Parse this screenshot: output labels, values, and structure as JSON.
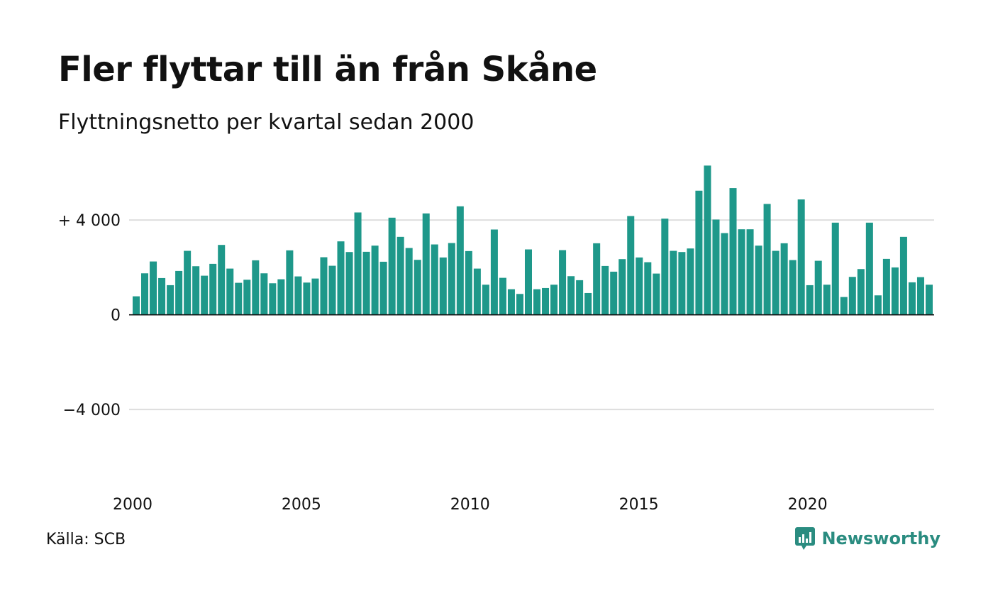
{
  "title": "Fler flyttar till än från Skåne",
  "subtitle": "Flyttningsnetto per kvartal sedan 2000",
  "source": "Källa: SCB",
  "brand": {
    "name": "Newsworthy",
    "icon": "newsworthy-logo-icon"
  },
  "colors": {
    "bar": "#1e988a",
    "grid": "#dedede",
    "zero_line": "#111111",
    "brand": "#2a8c80"
  },
  "chart_data": {
    "type": "bar",
    "x_start": "2000-Q1",
    "xlim_years": [
      2000,
      2023.75
    ],
    "ylim": [
      -7500,
      7000
    ],
    "grid": true,
    "y_ticks": [
      {
        "value": 4000,
        "label": "+ 4 000"
      },
      {
        "value": 0,
        "label": "0"
      },
      {
        "value": -4000,
        "label": "−4 000"
      }
    ],
    "x_ticks": [
      {
        "year": 2000,
        "label": "2000"
      },
      {
        "year": 2005,
        "label": "2005"
      },
      {
        "year": 2010,
        "label": "2010"
      },
      {
        "year": 2015,
        "label": "2015"
      },
      {
        "year": 2020,
        "label": "2020"
      }
    ],
    "values": [
      780,
      1750,
      2250,
      1550,
      1250,
      1850,
      2700,
      2050,
      1650,
      2150,
      2950,
      1950,
      1350,
      1480,
      2300,
      1750,
      1330,
      1500,
      2720,
      1620,
      1360,
      1530,
      2430,
      2070,
      3100,
      2650,
      4320,
      2660,
      2920,
      2240,
      4100,
      3290,
      2820,
      2320,
      4280,
      2970,
      2420,
      3030,
      4580,
      2690,
      1950,
      1270,
      3600,
      1560,
      1080,
      880,
      2760,
      1080,
      1130,
      1270,
      2730,
      1630,
      1460,
      920,
      3020,
      2060,
      1820,
      2350,
      4170,
      2420,
      2220,
      1740,
      4060,
      2700,
      2650,
      2800,
      5240,
      6300,
      4020,
      3450,
      5350,
      3610,
      3610,
      2920,
      4680,
      2700,
      3020,
      2310,
      4870,
      1250,
      2280,
      1270,
      3890,
      750,
      1600,
      1930,
      3890,
      820,
      2360,
      2000,
      3290,
      1370,
      1590,
      1270
    ]
  }
}
